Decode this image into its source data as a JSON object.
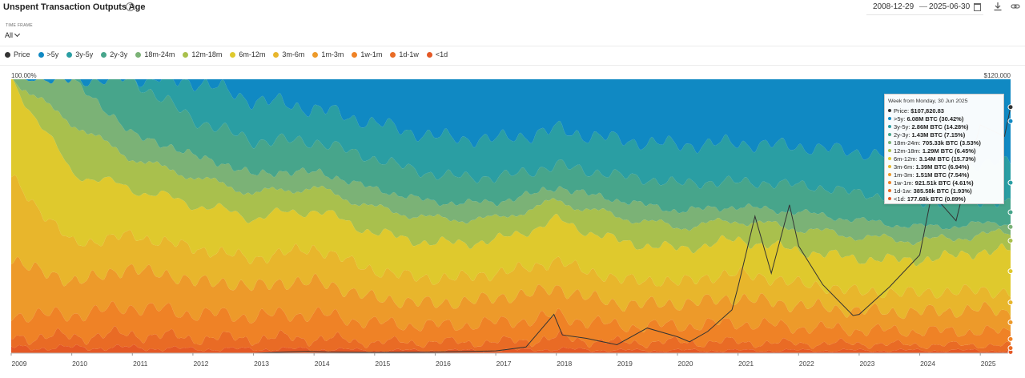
{
  "header": {
    "title": "Unspent Transaction Outputs Age",
    "help_icon": "?",
    "date_start": "2008-12-29",
    "date_separator": "—",
    "date_end": "2025-06-30"
  },
  "timeframe": {
    "label": "TIME FRAME",
    "value": "All"
  },
  "colors": {
    "price": "#333333",
    "gt5y": "#1089c3",
    "y3_5": "#2a9ea3",
    "y2_3": "#47a58b",
    "m18_24": "#7bb276",
    "m12_18": "#a9c04d",
    "m6_12": "#dfc92d",
    "m3_6": "#e8b62c",
    "m1_3": "#ed9a2a",
    "w1_1m": "#ef8226",
    "d1_1w": "#e96b25",
    "lt1d": "#e45826"
  },
  "chart_data": {
    "type": "area",
    "stacked": true,
    "normalized": true,
    "x_dates": [
      "2009-01",
      "2010-01",
      "2011-01",
      "2012-01",
      "2013-01",
      "2014-01",
      "2015-01",
      "2016-01",
      "2017-01",
      "2018-01",
      "2019-01",
      "2020-01",
      "2021-01",
      "2022-01",
      "2023-01",
      "2024-01",
      "2025-01",
      "2025-06-30"
    ],
    "x_ticks": [
      "2009",
      "2010",
      "2011",
      "2012",
      "2013",
      "2014",
      "2015",
      "2016",
      "2017",
      "2018",
      "2019",
      "2020",
      "2021",
      "2022",
      "2023",
      "2024",
      "2025"
    ],
    "y_left_top_label": "100.00%",
    "y_right_top_label": "$120,000",
    "y_right_max": 120000,
    "series": [
      {
        "name": "<1d",
        "key": "lt1d",
        "values": [
          2,
          2,
          2,
          1.5,
          1.5,
          1.5,
          1,
          1,
          1,
          1.5,
          1,
          1,
          1,
          1,
          1,
          1,
          1,
          0.89
        ]
      },
      {
        "name": "1d-1w",
        "key": "d1_1w",
        "values": [
          4,
          4,
          5,
          4,
          4,
          4,
          3,
          3,
          3,
          4,
          3,
          3,
          3,
          2.5,
          2.5,
          2,
          2,
          1.93
        ]
      },
      {
        "name": "1w-1m",
        "key": "w1_1m",
        "values": [
          8,
          8,
          10,
          9,
          8,
          9,
          7,
          6,
          7,
          8,
          6,
          6,
          7,
          6,
          5,
          5,
          5,
          4.61
        ]
      },
      {
        "name": "1m-3m",
        "key": "m1_3",
        "values": [
          20,
          12,
          14,
          12,
          11,
          12,
          9,
          8,
          9,
          10,
          8,
          8,
          9,
          8,
          7,
          7,
          8,
          7.54
        ]
      },
      {
        "name": "3m-6m",
        "key": "m3_6",
        "values": [
          30,
          14,
          12,
          12,
          10,
          12,
          10,
          9,
          9,
          10,
          9,
          8,
          9,
          8,
          7,
          7,
          7,
          6.94
        ]
      },
      {
        "name": "6m-12m",
        "key": "m6_12",
        "values": [
          36,
          26,
          17,
          16,
          15,
          14,
          14,
          13,
          12,
          15,
          14,
          12,
          12,
          12,
          12,
          12,
          14,
          15.73
        ]
      },
      {
        "name": "12m-18m",
        "key": "m12_18",
        "values": [
          0,
          18,
          11,
          10,
          9,
          8,
          9,
          9,
          8,
          7,
          9,
          8,
          7,
          8,
          8,
          7,
          6,
          6.45
        ]
      },
      {
        "name": "18m-24m",
        "key": "m18_24",
        "values": [
          0,
          16,
          9,
          8,
          7,
          6,
          7,
          6,
          6,
          5,
          6,
          6,
          5,
          6,
          6,
          5,
          4,
          3.53
        ]
      },
      {
        "name": "2y-3y",
        "key": "y2_3",
        "values": [
          0,
          0,
          20,
          13,
          12,
          11,
          11,
          10,
          9,
          8,
          9,
          10,
          9,
          10,
          10,
          9,
          8,
          7.15
        ]
      },
      {
        "name": "3y-5y",
        "key": "y3_5",
        "values": [
          0,
          0,
          0,
          14,
          15,
          12,
          13,
          14,
          14,
          13,
          13,
          14,
          14,
          14,
          15,
          15,
          14,
          14.28
        ]
      },
      {
        "name": ">5y",
        "key": "gt5y",
        "values": [
          0,
          0,
          0,
          0.5,
          7.5,
          10.5,
          16,
          21,
          22,
          18.5,
          22,
          24,
          23,
          24.5,
          26.5,
          30,
          31,
          30.42
        ]
      }
    ],
    "price": {
      "name": "Price",
      "x": [
        2009.0,
        2010.5,
        2011.3,
        2011.5,
        2012.0,
        2013.0,
        2013.9,
        2014.2,
        2015.0,
        2016.0,
        2017.0,
        2017.5,
        2017.96,
        2018.1,
        2018.5,
        2019.0,
        2019.5,
        2020.0,
        2020.2,
        2020.5,
        2020.9,
        2021.0,
        2021.28,
        2021.55,
        2021.85,
        2022.0,
        2022.4,
        2022.9,
        2023.0,
        2023.5,
        2024.0,
        2024.2,
        2024.6,
        2024.9,
        2025.0,
        2025.4,
        2025.5
      ],
      "y": [
        0,
        0,
        10,
        5,
        6,
        13,
        800,
        500,
        300,
        430,
        1000,
        2700,
        17000,
        8000,
        6500,
        3700,
        11000,
        7200,
        5000,
        9500,
        19000,
        29000,
        60000,
        35000,
        65000,
        47000,
        30000,
        16500,
        17000,
        29000,
        43000,
        70000,
        58000,
        90000,
        100000,
        95000,
        107820.83
      ]
    },
    "tooltip": {
      "header": "Week from Monday, 30 Jun 2025",
      "rows": [
        {
          "key": "price",
          "label": "Price:",
          "value": "$107,820.83"
        },
        {
          "key": "gt5y",
          "label": ">5y:",
          "value": "6.08M BTC (30.42%)"
        },
        {
          "key": "y3_5",
          "label": "3y-5y:",
          "value": "2.86M BTC (14.28%)"
        },
        {
          "key": "y2_3",
          "label": "2y-3y:",
          "value": "1.43M BTC (7.15%)"
        },
        {
          "key": "m18_24",
          "label": "18m-24m:",
          "value": "705.33k BTC (3.53%)"
        },
        {
          "key": "m12_18",
          "label": "12m-18m:",
          "value": "1.29M BTC (6.45%)"
        },
        {
          "key": "m6_12",
          "label": "6m-12m:",
          "value": "3.14M BTC (15.73%)"
        },
        {
          "key": "m3_6",
          "label": "3m-6m:",
          "value": "1.39M BTC (6.94%)"
        },
        {
          "key": "m1_3",
          "label": "1m-3m:",
          "value": "1.51M BTC (7.54%)"
        },
        {
          "key": "w1_1m",
          "label": "1w-1m:",
          "value": "921.51k BTC (4.61%)"
        },
        {
          "key": "d1_1w",
          "label": "1d-1w:",
          "value": "385.58k BTC (1.93%)"
        },
        {
          "key": "lt1d",
          "label": "<1d:",
          "value": "177.68k BTC (0.89%)"
        }
      ]
    },
    "legend": [
      "Price",
      ">5y",
      "3y-5y",
      "2y-3y",
      "18m-24m",
      "12m-18m",
      "6m-12m",
      "3m-6m",
      "1m-3m",
      "1w-1m",
      "1d-1w",
      "<1d"
    ],
    "legend_keys": [
      "price",
      "gt5y",
      "y3_5",
      "y2_3",
      "m18_24",
      "m12_18",
      "m6_12",
      "m3_6",
      "m1_3",
      "w1_1m",
      "d1_1w",
      "lt1d"
    ]
  }
}
